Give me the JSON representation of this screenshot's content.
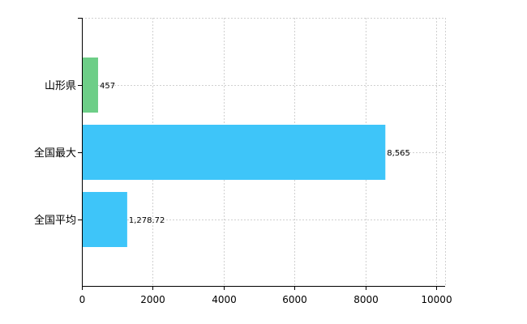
{
  "chart_data": {
    "type": "bar",
    "orientation": "horizontal",
    "categories": [
      "山形県",
      "全国最大",
      "全国平均"
    ],
    "values": [
      457,
      8565,
      1278.72
    ],
    "value_labels": [
      "457",
      "8,565",
      "1,278.72"
    ],
    "bar_colors": [
      "#6dce87",
      "#3ec5f9",
      "#3ec5f9"
    ],
    "xlim": [
      0,
      10000
    ],
    "xticks": [
      0,
      2000,
      4000,
      6000,
      8000,
      10000
    ],
    "xtick_labels": [
      "0",
      "2000",
      "4000",
      "6000",
      "8000",
      "10000"
    ],
    "grid": true,
    "title": "",
    "xlabel": "",
    "ylabel": ""
  }
}
